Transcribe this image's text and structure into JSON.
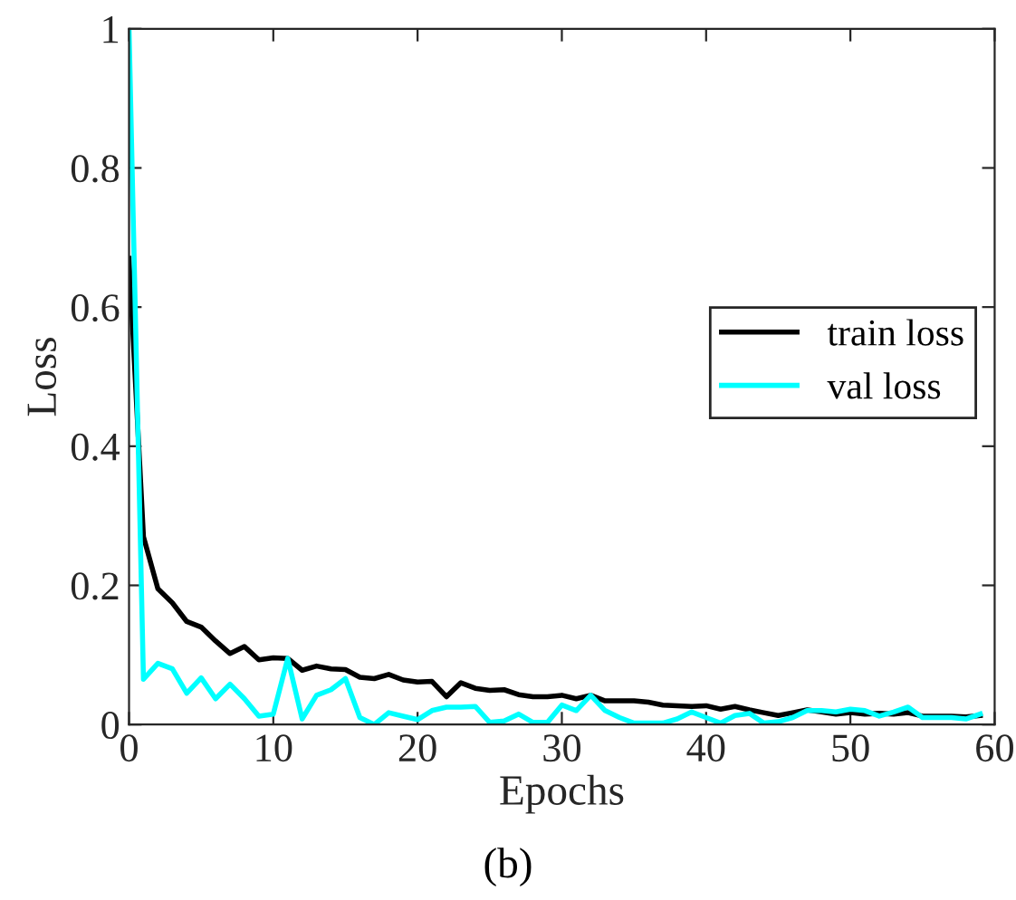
{
  "chart_data": {
    "type": "line",
    "xlabel": "Epochs",
    "ylabel": "Loss",
    "x": [
      0,
      1,
      2,
      3,
      4,
      5,
      6,
      7,
      8,
      9,
      10,
      11,
      12,
      13,
      14,
      15,
      16,
      17,
      18,
      19,
      20,
      21,
      22,
      23,
      24,
      25,
      26,
      27,
      28,
      29,
      30,
      31,
      32,
      33,
      34,
      35,
      36,
      37,
      38,
      39,
      40,
      41,
      42,
      43,
      44,
      45,
      46,
      47,
      48,
      49,
      50,
      51,
      52,
      53,
      54,
      55,
      56,
      57,
      58,
      59
    ],
    "series": [
      {
        "name": "train loss",
        "color": "#000000",
        "values": [
          0.67,
          0.27,
          0.195,
          0.175,
          0.148,
          0.14,
          0.12,
          0.102,
          0.112,
          0.093,
          0.096,
          0.095,
          0.078,
          0.084,
          0.08,
          0.079,
          0.068,
          0.066,
          0.072,
          0.064,
          0.061,
          0.062,
          0.04,
          0.06,
          0.052,
          0.049,
          0.05,
          0.043,
          0.04,
          0.04,
          0.042,
          0.037,
          0.042,
          0.034,
          0.034,
          0.034,
          0.032,
          0.028,
          0.027,
          0.026,
          0.027,
          0.022,
          0.026,
          0.021,
          0.017,
          0.013,
          0.017,
          0.021,
          0.018,
          0.015,
          0.017,
          0.015,
          0.016,
          0.015,
          0.017,
          0.012,
          0.012,
          0.012,
          0.011,
          0.013
        ]
      },
      {
        "name": "val loss",
        "color": "#00ffff",
        "values": [
          1.0,
          0.065,
          0.088,
          0.08,
          0.045,
          0.067,
          0.037,
          0.058,
          0.037,
          0.012,
          0.015,
          0.095,
          0.008,
          0.042,
          0.05,
          0.066,
          0.01,
          0.0,
          0.017,
          0.012,
          0.007,
          0.02,
          0.025,
          0.025,
          0.026,
          0.003,
          0.005,
          0.015,
          0.003,
          0.003,
          0.028,
          0.02,
          0.042,
          0.02,
          0.01,
          0.002,
          0.002,
          0.002,
          0.008,
          0.018,
          0.01,
          0.002,
          0.013,
          0.016,
          0.002,
          0.004,
          0.01,
          0.02,
          0.02,
          0.018,
          0.022,
          0.02,
          0.012,
          0.018,
          0.025,
          0.01,
          0.01,
          0.01,
          0.008,
          0.015
        ]
      }
    ],
    "xlim": [
      0,
      60
    ],
    "xticks": [
      0,
      10,
      20,
      30,
      40,
      50,
      60
    ],
    "ylim": [
      0,
      1
    ],
    "yticks": [
      0,
      0.2,
      0.4,
      0.6,
      0.8,
      1
    ],
    "grid": false,
    "legend": "right",
    "marker": "none",
    "line_style": "solid",
    "annotations": [
      "(b)"
    ]
  }
}
